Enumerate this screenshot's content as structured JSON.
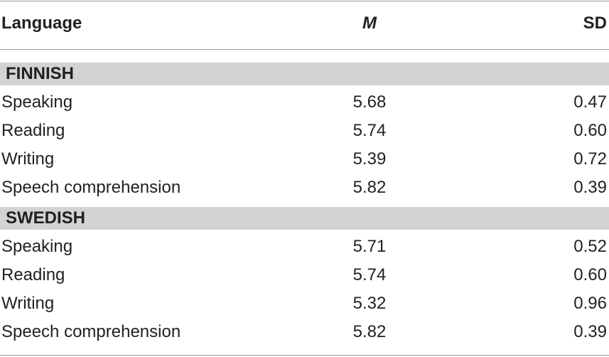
{
  "table": {
    "headers": {
      "language": "Language",
      "mean": "M",
      "sd": "SD"
    },
    "groups": [
      {
        "label": "FINNISH",
        "rows": [
          {
            "language": "Speaking",
            "m": "5.68",
            "sd": "0.47"
          },
          {
            "language": "Reading",
            "m": "5.74",
            "sd": "0.60"
          },
          {
            "language": "Writing",
            "m": "5.39",
            "sd": "0.72"
          },
          {
            "language": "Speech comprehension",
            "m": "5.82",
            "sd": "0.39"
          }
        ]
      },
      {
        "label": "SWEDISH",
        "rows": [
          {
            "language": "Speaking",
            "m": "5.71",
            "sd": "0.52"
          },
          {
            "language": "Reading",
            "m": "5.74",
            "sd": "0.60"
          },
          {
            "language": "Writing",
            "m": "5.32",
            "sd": "0.96"
          },
          {
            "language": "Speech comprehension",
            "m": "5.82",
            "sd": "0.39"
          }
        ]
      }
    ]
  }
}
